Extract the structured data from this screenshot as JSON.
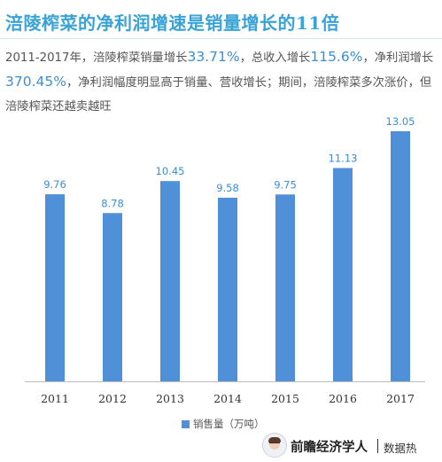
{
  "header": {
    "title": "涪陵榨菜的净利润增速是销量增长的11倍"
  },
  "description": {
    "part1": "2011-2017年，涪陵榨菜销量增长",
    "hl1": "33.71%",
    "part2": "，总收入增长",
    "hl2": "115.6%",
    "part3": "，净利润增长",
    "hl3": "370.45%",
    "part4": "，净利润幅度明显高于销量、营收增长；期间，涪陵榨菜多次涨价，但涪陵榨菜还越卖越旺"
  },
  "chart_data": {
    "type": "bar",
    "categories": [
      "2011",
      "2012",
      "2013",
      "2014",
      "2015",
      "2016",
      "2017"
    ],
    "series": [
      {
        "name": "销售量（万吨）",
        "values": [
          9.76,
          8.78,
          10.45,
          9.58,
          9.75,
          11.13,
          13.05
        ]
      }
    ],
    "ylim": [
      0,
      13.05
    ],
    "grid": false,
    "legend": "bottom-center",
    "bar_color": "#4f90d9",
    "label_color": "#3b8fd3"
  },
  "legend": {
    "label": "销售量（万吨）"
  },
  "footer": {
    "brand": "前瞻经济学人",
    "sub": "数据热"
  }
}
